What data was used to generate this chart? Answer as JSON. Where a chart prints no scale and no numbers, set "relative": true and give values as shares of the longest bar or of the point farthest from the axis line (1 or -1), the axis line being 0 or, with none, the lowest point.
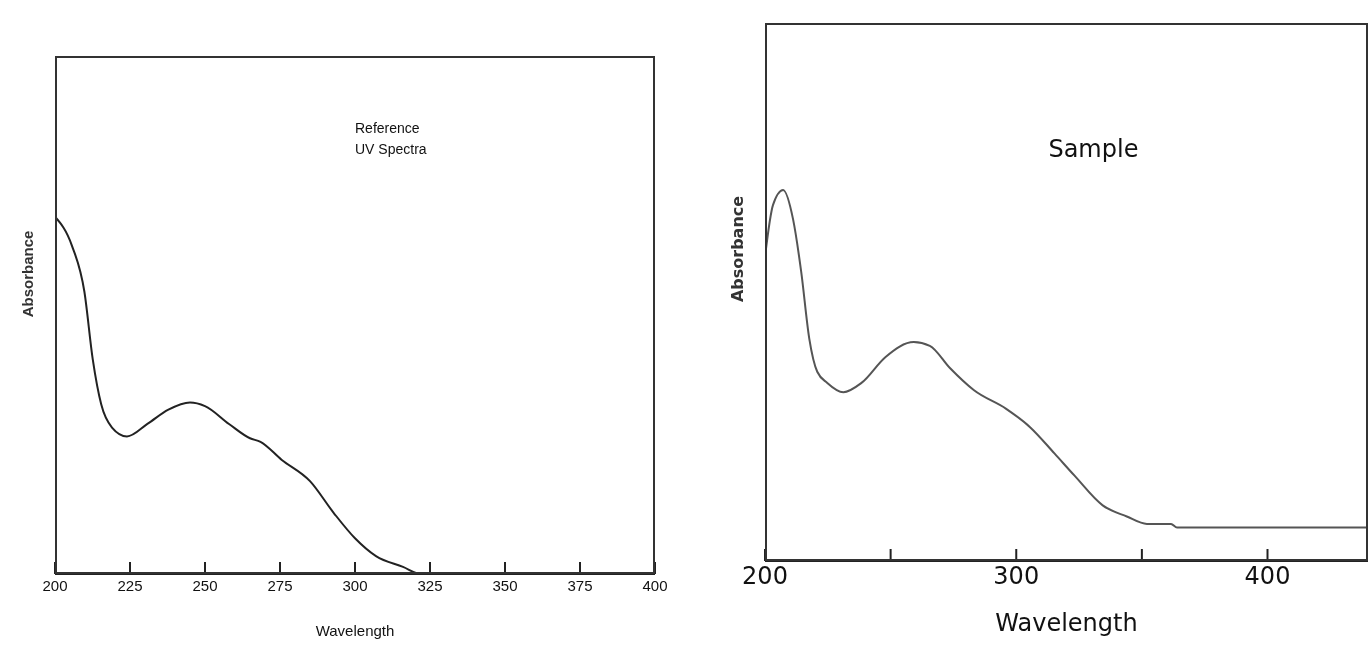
{
  "chart_data": [
    {
      "type": "line",
      "xlabel": "Wavelength",
      "ylabel": "Absorbance",
      "annotations": [
        "Reference\nUV Spectra"
      ],
      "relative": true,
      "xlim": [
        200,
        400
      ],
      "xticks": [
        200,
        225,
        250,
        275,
        300,
        325,
        350,
        375,
        400
      ],
      "grid": false,
      "legend": false,
      "marker": "none",
      "line_style": "solid",
      "series": [
        {
          "color": "#222222",
          "x": [
            200,
            205.6,
            209.8,
            212.6,
            215.4,
            219,
            224,
            230.8,
            237.8,
            245,
            250,
            258,
            265,
            268.5,
            275.5,
            285,
            293,
            300,
            307,
            316,
            322,
            340,
            400
          ],
          "values": [
            1,
            0.92,
            0.79,
            0.6,
            0.475,
            0.41,
            0.385,
            0.42,
            0.46,
            0.48,
            0.47,
            0.42,
            0.38,
            0.37,
            0.32,
            0.26,
            0.17,
            0.1,
            0.05,
            0.02,
            0,
            0,
            0
          ]
        }
      ]
    },
    {
      "type": "line",
      "xlabel": "Wavelength",
      "ylabel": "Absorbance",
      "annotations": [
        "Sample"
      ],
      "relative": true,
      "xlim": [
        200,
        440
      ],
      "xticks": [
        200,
        {
          "value": 250,
          "label": null
        },
        300,
        {
          "value": 350,
          "label": null
        },
        400
      ],
      "grid": false,
      "legend": false,
      "marker": "none",
      "line_style": "solid",
      "series": [
        {
          "color": "#555555",
          "x": [
            200,
            203.2,
            207.2,
            211.2,
            214.4,
            217.6,
            220.8,
            224.8,
            231.2,
            238.4,
            248,
            259.2,
            265.6,
            273.6,
            283.2,
            296,
            305.6,
            315.2,
            323.2,
            334.4,
            344,
            352,
            361.6,
            364,
            440
          ],
          "values": [
            0.82,
            0.96,
            1,
            0.92,
            0.78,
            0.6,
            0.51,
            0.48,
            0.455,
            0.48,
            0.55,
            0.59,
            0.58,
            0.52,
            0.46,
            0.41,
            0.36,
            0.29,
            0.23,
            0.15,
            0.12,
            0.1,
            0.1,
            0.09,
            0.09
          ]
        }
      ]
    }
  ]
}
